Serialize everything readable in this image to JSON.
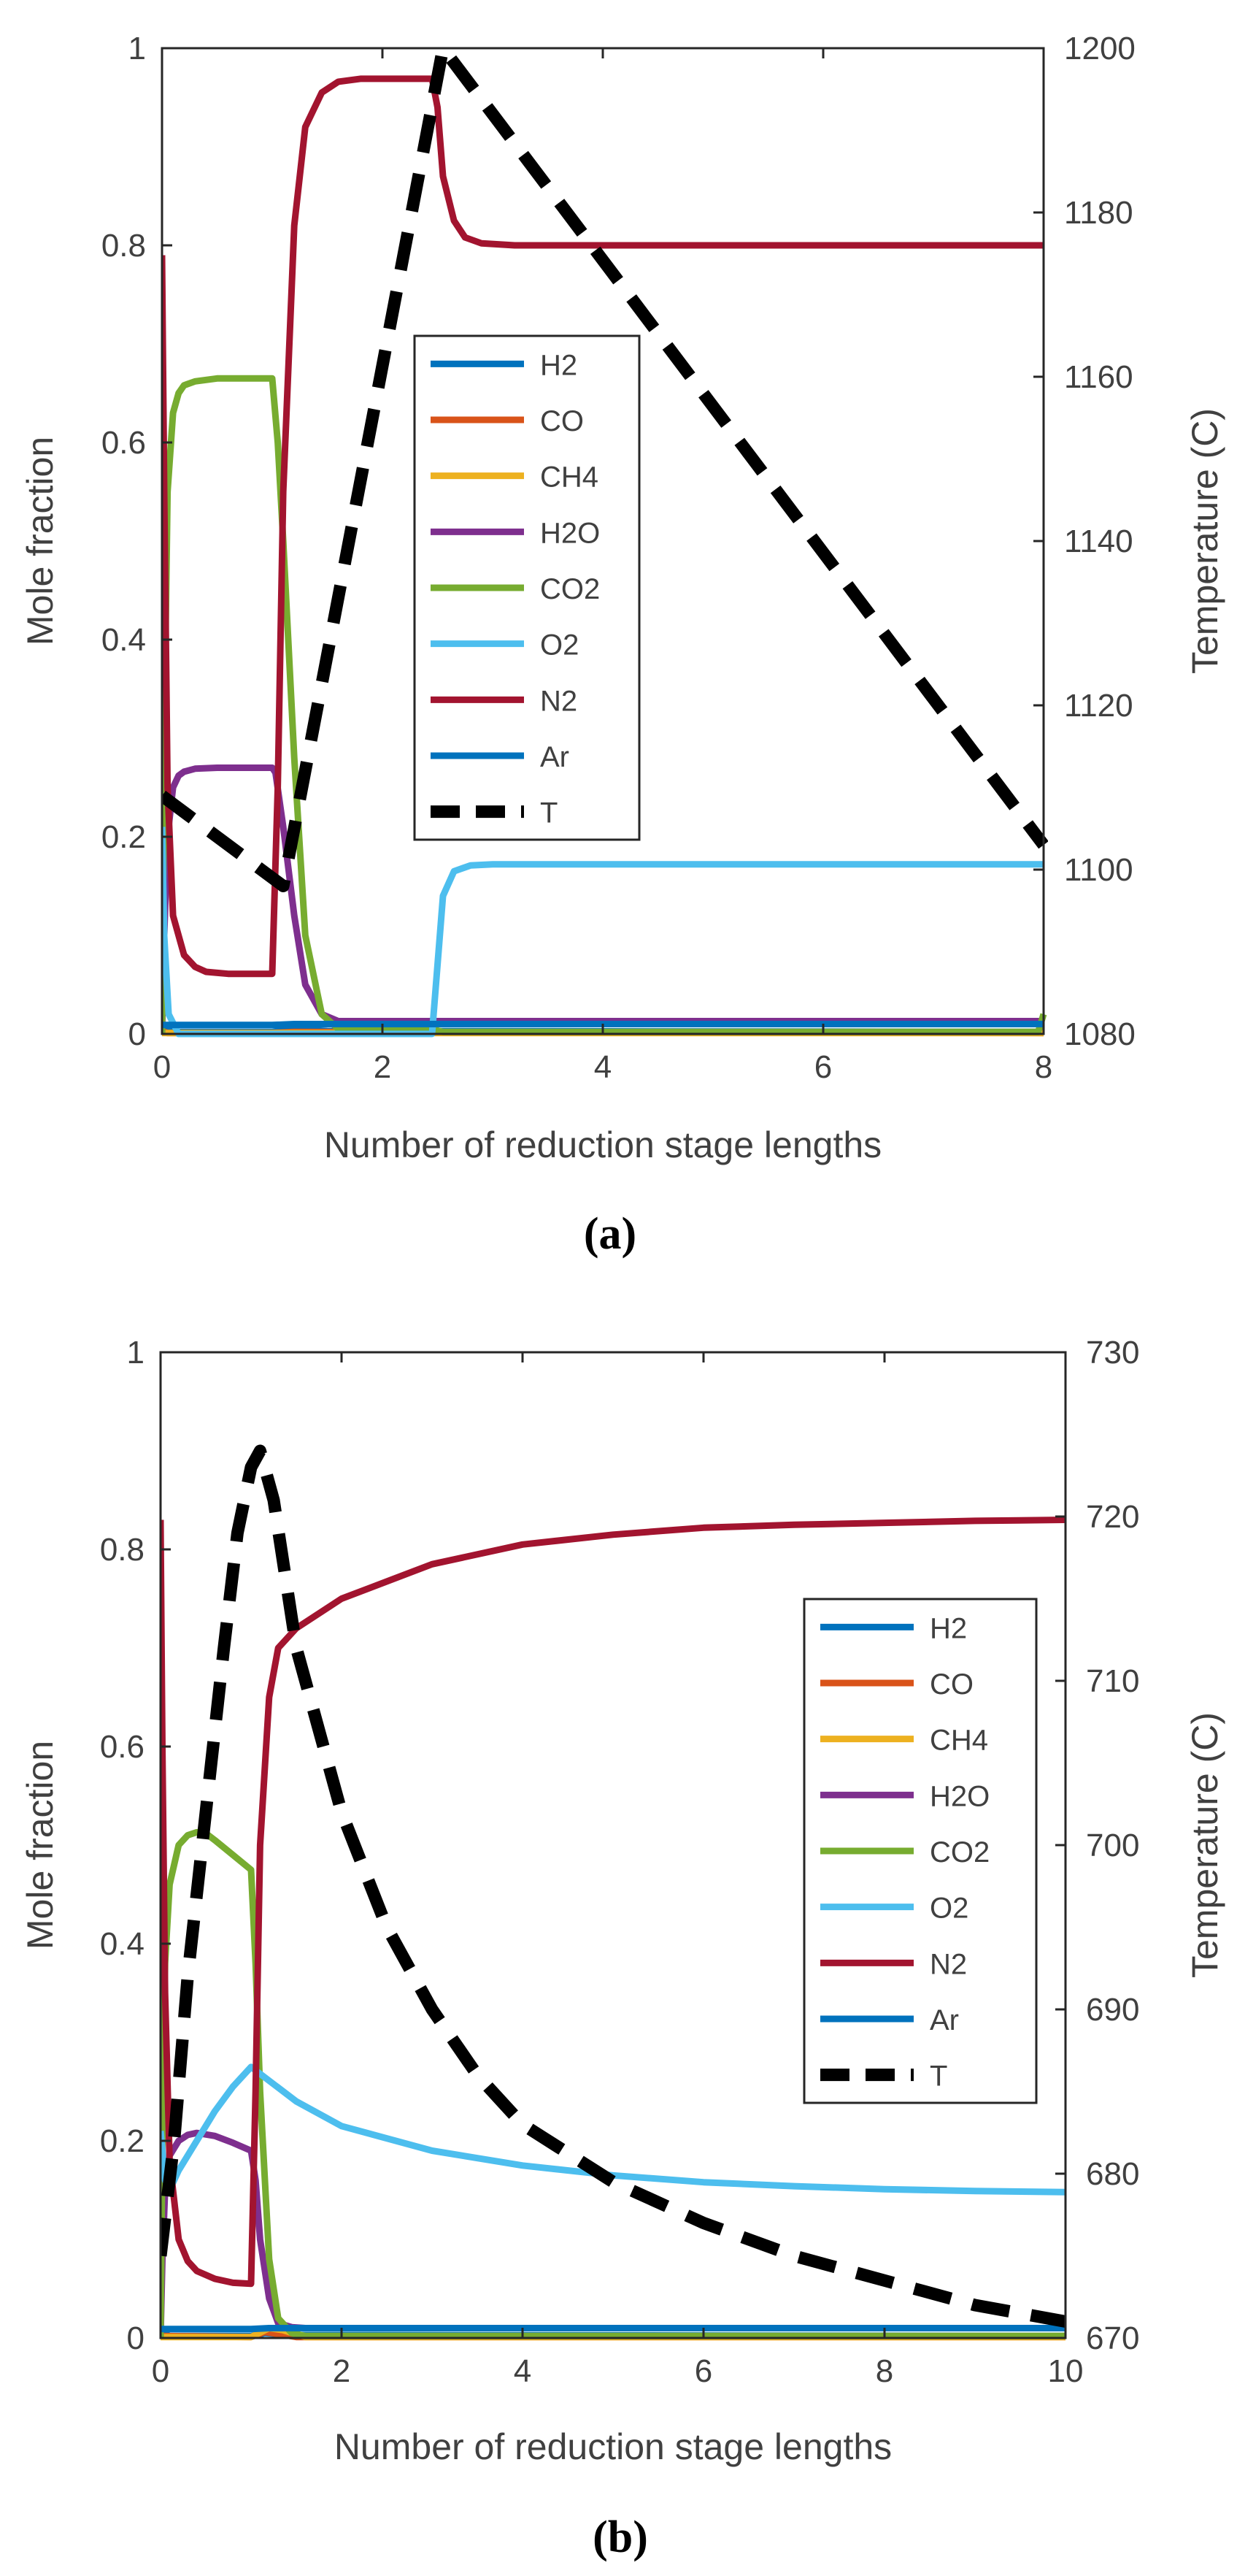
{
  "colors": {
    "H2": "#0072BD",
    "CO": "#D95319",
    "CH4": "#EDB120",
    "H2O": "#7E2F8E",
    "CO2": "#77AC30",
    "O2": "#4DBEEE",
    "N2": "#A2142F",
    "Ar": "#0072BD",
    "T": "#000000"
  },
  "chart_data": [
    {
      "type": "line",
      "caption": "(a)",
      "xlabel": "Number of reduction stage lengths",
      "ylabel": "Mole fraction",
      "ylabel_right": "Temperature (C)",
      "xlim": [
        0,
        8
      ],
      "ylim": [
        0,
        1
      ],
      "ylim_right": [
        1080,
        1200
      ],
      "xticks": [
        "0",
        "2",
        "4",
        "6",
        "8"
      ],
      "yticks": [
        "0",
        "0.2",
        "0.4",
        "0.6",
        "0.8",
        "1"
      ],
      "yticks_right": [
        "1080",
        "1100",
        "1120",
        "1140",
        "1160",
        "1180",
        "1200"
      ],
      "legend": [
        "H2",
        "CO",
        "CH4",
        "H2O",
        "CO2",
        "O2",
        "N2",
        "Ar",
        "T"
      ],
      "legend_position": "center",
      "series": [
        {
          "name": "H2",
          "x": [
            0,
            0.05,
            0.15,
            1.0,
            1.15,
            1.5,
            8
          ],
          "y": [
            0.01,
            0.004,
            0.002,
            0.002,
            0.005,
            0.003,
            0.002
          ]
        },
        {
          "name": "CO",
          "x": [
            0,
            0.05,
            1.0,
            1.2,
            8
          ],
          "y": [
            0.003,
            0.001,
            0.001,
            0.002,
            0.001
          ]
        },
        {
          "name": "CH4",
          "x": [
            0,
            1.0,
            8
          ],
          "y": [
            0.001,
            0.001,
            0.001
          ]
        },
        {
          "name": "H2O",
          "x": [
            0,
            0.02,
            0.05,
            0.1,
            0.15,
            0.2,
            0.3,
            0.5,
            1.0,
            1.03,
            1.1,
            1.2,
            1.3,
            1.45,
            1.6,
            8
          ],
          "y": [
            0.0,
            0.1,
            0.2,
            0.25,
            0.262,
            0.266,
            0.269,
            0.27,
            0.27,
            0.265,
            0.21,
            0.12,
            0.05,
            0.02,
            0.013,
            0.013
          ]
        },
        {
          "name": "CO2",
          "x": [
            0,
            0.02,
            0.05,
            0.1,
            0.15,
            0.2,
            0.3,
            0.5,
            1.0,
            1.05,
            1.1,
            1.2,
            1.3,
            1.45,
            1.6,
            2.45,
            2.55,
            7.95,
            8.0
          ],
          "y": [
            0.0,
            0.3,
            0.55,
            0.63,
            0.65,
            0.658,
            0.662,
            0.665,
            0.665,
            0.6,
            0.5,
            0.28,
            0.1,
            0.02,
            0.005,
            0.005,
            0.002,
            0.002,
            0.02
          ]
        },
        {
          "name": "O2",
          "x": [
            0,
            0.02,
            0.06,
            0.15,
            1.0,
            2.45,
            2.5,
            2.55,
            2.65,
            2.8,
            3.0,
            8
          ],
          "y": [
            0.21,
            0.1,
            0.02,
            0.0,
            0.0,
            0.0,
            0.07,
            0.14,
            0.165,
            0.171,
            0.172,
            0.172
          ]
        },
        {
          "name": "N2",
          "x": [
            0,
            0.02,
            0.05,
            0.1,
            0.2,
            0.3,
            0.4,
            0.6,
            1.0,
            1.05,
            1.1,
            1.2,
            1.3,
            1.45,
            1.6,
            1.8,
            2.0,
            2.45,
            2.5,
            2.55,
            2.65,
            2.75,
            2.9,
            3.2,
            8
          ],
          "y": [
            0.79,
            0.55,
            0.25,
            0.12,
            0.08,
            0.068,
            0.063,
            0.061,
            0.061,
            0.25,
            0.55,
            0.82,
            0.92,
            0.955,
            0.966,
            0.969,
            0.969,
            0.969,
            0.94,
            0.87,
            0.825,
            0.808,
            0.802,
            0.8,
            0.8
          ]
        },
        {
          "name": "Ar",
          "x": [
            0,
            1.0,
            1.2,
            8
          ],
          "y": [
            0.009,
            0.009,
            0.01,
            0.01
          ]
        },
        {
          "name": "T",
          "axis": "right",
          "x": [
            0,
            1.1,
            2.55,
            8
          ],
          "y": [
            1109,
            1098,
            1200,
            1103
          ]
        }
      ]
    },
    {
      "type": "line",
      "caption": "(b)",
      "xlabel": "Number of reduction stage lengths",
      "ylabel": "Mole fraction",
      "ylabel_right": "Temperature (C)",
      "xlim": [
        0,
        10
      ],
      "ylim": [
        0,
        1
      ],
      "ylim_right": [
        670,
        730
      ],
      "xticks": [
        "0",
        "2",
        "4",
        "6",
        "8",
        "10"
      ],
      "yticks": [
        "0",
        "0.2",
        "0.4",
        "0.6",
        "0.8",
        "1"
      ],
      "yticks_right": [
        "670",
        "680",
        "690",
        "700",
        "710",
        "720",
        "730"
      ],
      "legend": [
        "H2",
        "CO",
        "CH4",
        "H2O",
        "CO2",
        "O2",
        "N2",
        "Ar",
        "T"
      ],
      "legend_position": "right",
      "series": [
        {
          "name": "H2",
          "x": [
            0,
            0.05,
            0.1,
            1.0,
            1.15,
            1.5,
            10
          ],
          "y": [
            0.01,
            0.004,
            0.002,
            0.002,
            0.005,
            0.003,
            0.002
          ]
        },
        {
          "name": "CO",
          "x": [
            0,
            1.0,
            1.15,
            1.3,
            1.5,
            10
          ],
          "y": [
            0.002,
            0.001,
            0.006,
            0.004,
            0.001,
            0.001
          ]
        },
        {
          "name": "CH4",
          "x": [
            0,
            1.0,
            1.2,
            1.35,
            1.6,
            10
          ],
          "y": [
            0.001,
            0.001,
            0.01,
            0.008,
            0.001,
            0.001
          ]
        },
        {
          "name": "H2O",
          "x": [
            0,
            0.02,
            0.05,
            0.1,
            0.2,
            0.3,
            0.4,
            0.6,
            0.8,
            1.0,
            1.05,
            1.1,
            1.2,
            1.3,
            1.45,
            1.6,
            10
          ],
          "y": [
            0.0,
            0.08,
            0.15,
            0.185,
            0.2,
            0.206,
            0.208,
            0.205,
            0.198,
            0.19,
            0.16,
            0.1,
            0.04,
            0.015,
            0.011,
            0.01,
            0.01
          ]
        },
        {
          "name": "CO2",
          "x": [
            0,
            0.02,
            0.05,
            0.1,
            0.2,
            0.3,
            0.4,
            0.5,
            0.6,
            0.8,
            1.0,
            1.05,
            1.1,
            1.2,
            1.3,
            1.45,
            1.6,
            10
          ],
          "y": [
            0.0,
            0.2,
            0.38,
            0.46,
            0.5,
            0.51,
            0.513,
            0.512,
            0.505,
            0.49,
            0.475,
            0.38,
            0.25,
            0.08,
            0.02,
            0.005,
            0.002,
            0.002
          ]
        },
        {
          "name": "O2",
          "x": [
            0,
            0.05,
            0.1,
            0.2,
            0.4,
            0.6,
            0.8,
            1.0,
            1.5,
            2,
            3,
            4,
            5,
            6,
            7,
            8,
            9,
            10
          ],
          "y": [
            0.21,
            0.16,
            0.15,
            0.17,
            0.2,
            0.23,
            0.255,
            0.275,
            0.24,
            0.215,
            0.19,
            0.175,
            0.165,
            0.158,
            0.154,
            0.151,
            0.149,
            0.148
          ]
        },
        {
          "name": "N2",
          "x": [
            0,
            0.02,
            0.05,
            0.1,
            0.2,
            0.3,
            0.4,
            0.6,
            0.8,
            1.0,
            1.05,
            1.1,
            1.2,
            1.3,
            1.5,
            2,
            3,
            4,
            5,
            6,
            7,
            8,
            9,
            10
          ],
          "y": [
            0.83,
            0.6,
            0.35,
            0.18,
            0.1,
            0.078,
            0.068,
            0.06,
            0.056,
            0.055,
            0.25,
            0.5,
            0.65,
            0.7,
            0.72,
            0.75,
            0.785,
            0.805,
            0.815,
            0.822,
            0.825,
            0.827,
            0.829,
            0.83
          ]
        },
        {
          "name": "Ar",
          "x": [
            0,
            1.0,
            1.2,
            10
          ],
          "y": [
            0.009,
            0.009,
            0.01,
            0.01
          ]
        },
        {
          "name": "T",
          "axis": "right",
          "x": [
            0,
            0.15,
            0.3,
            0.5,
            0.7,
            0.85,
            1.0,
            1.1,
            1.25,
            1.5,
            2,
            2.5,
            3,
            3.5,
            4,
            5,
            6,
            7,
            8,
            9,
            10
          ],
          "y": [
            675,
            682,
            692,
            702,
            712,
            719,
            723,
            724,
            721,
            712,
            702,
            695,
            690,
            686,
            683,
            679.5,
            677,
            675,
            673.5,
            672,
            671
          ]
        }
      ]
    }
  ]
}
